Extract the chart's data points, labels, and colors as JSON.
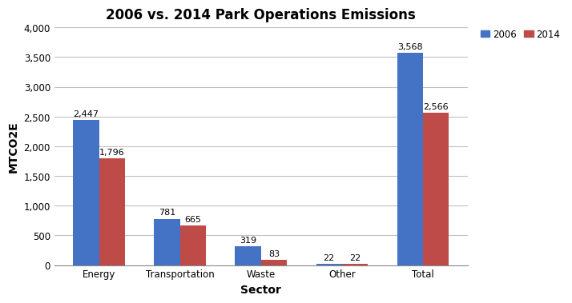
{
  "title": "2006 vs. 2014 Park Operations Emissions",
  "categories": [
    "Energy",
    "Transportation",
    "Waste",
    "Other",
    "Total"
  ],
  "values_2006": [
    2447,
    781,
    319,
    22,
    3568
  ],
  "values_2014": [
    1796,
    665,
    83,
    22,
    2566
  ],
  "color_2006": "#4472C4",
  "color_2014": "#BE4B48",
  "xlabel": "Sector",
  "ylabel": "MTCO2E",
  "ylim": [
    0,
    4000
  ],
  "yticks": [
    0,
    500,
    1000,
    1500,
    2000,
    2500,
    3000,
    3500,
    4000
  ],
  "ytick_labels": [
    "0",
    "500",
    "1,000",
    "1,500",
    "2,000",
    "2,500",
    "3,000",
    "3,500",
    "4,000"
  ],
  "legend_2006": "2006",
  "legend_2014": "2014",
  "bar_width": 0.32,
  "label_fontsize": 8,
  "title_fontsize": 12,
  "axis_label_fontsize": 10,
  "tick_fontsize": 8.5,
  "bg_color": "#FFFFFF",
  "plot_bg_color": "#FFFFFF",
  "grid_color": "#C0C0C0"
}
